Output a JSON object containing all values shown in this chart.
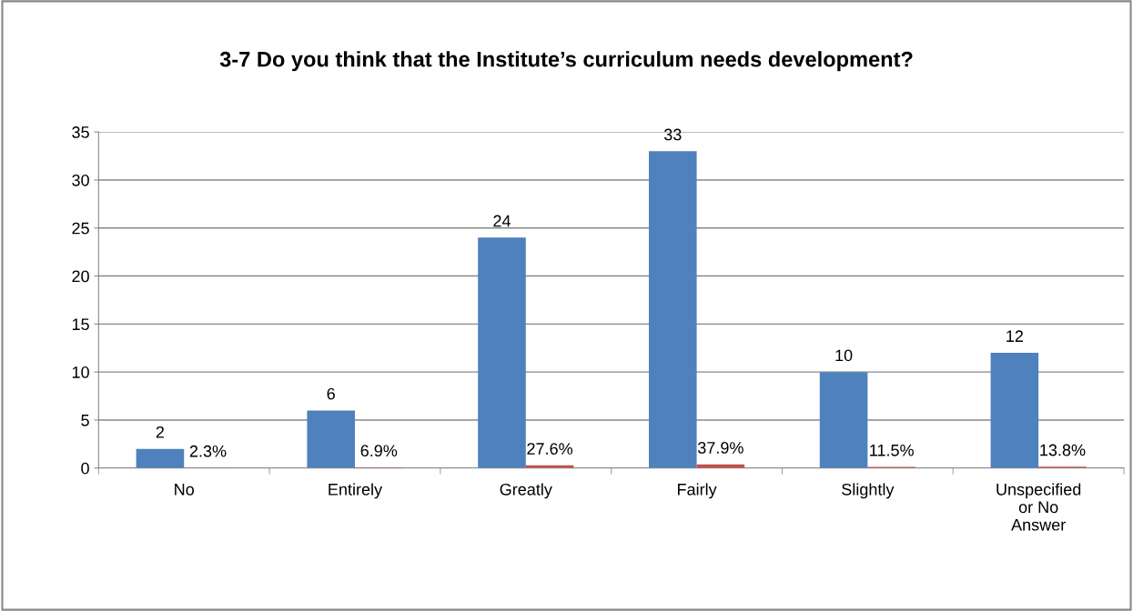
{
  "chart_data": {
    "type": "bar",
    "title": "3-7 Do you think that the Institute’s curriculum needs development?",
    "categories": [
      "No",
      "Entirely",
      "Greatly",
      "Fairly",
      "Slightly",
      "Unspecified\nor No\nAnswer"
    ],
    "series": [
      {
        "color": "#4f81bd",
        "values": [
          2,
          6,
          24,
          33,
          10,
          12
        ],
        "value_labels": [
          "2",
          "6",
          "24",
          "33",
          "10",
          "12"
        ]
      },
      {
        "color": "#c0504d",
        "values": [
          0.023,
          0.069,
          0.276,
          0.379,
          0.115,
          0.138
        ],
        "value_labels": [
          "2.3%",
          "6.9%",
          "27.6%",
          "37.9%",
          "11.5%",
          "13.8%"
        ]
      }
    ],
    "ylim": [
      0,
      35
    ],
    "yticks": [
      0,
      5,
      10,
      15,
      20,
      25,
      30,
      35
    ],
    "grid": "y",
    "legend": false
  }
}
